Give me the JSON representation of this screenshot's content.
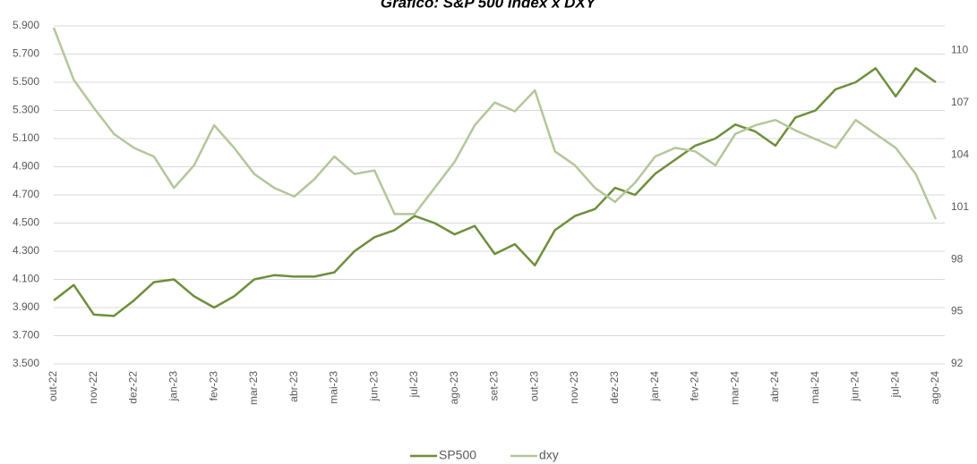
{
  "chart_data": {
    "type": "line",
    "title": "Gráfico: S&P 500 Index x DXY",
    "categories": [
      "out-22",
      null,
      "nov-22",
      null,
      "dez-22",
      null,
      "jan-23",
      null,
      "fev-23",
      null,
      "mar-23",
      null,
      "abr-23",
      null,
      "mai-23",
      null,
      "jun-23",
      null,
      "jul-23",
      null,
      "ago-23",
      null,
      "set-23",
      null,
      "out-23",
      null,
      "nov-23",
      null,
      "dez-23",
      null,
      "jan-24",
      null,
      "fev-24",
      null,
      "mar-24",
      null,
      "abr-24",
      null,
      "mai-24",
      null,
      "jun-24",
      null,
      "jul-24",
      null,
      "ago-24"
    ],
    "series": [
      {
        "name": "SP500",
        "color": "#6e8f3c",
        "values": [
          3950,
          4060,
          3850,
          3840,
          3950,
          4080,
          4100,
          3980,
          3900,
          3980,
          4100,
          4130,
          4120,
          4120,
          4150,
          4300,
          4400,
          4450,
          4550,
          4500,
          4420,
          4480,
          4280,
          4350,
          4200,
          4450,
          4550,
          4600,
          4750,
          4700,
          4850,
          4950,
          5050,
          5100,
          5200,
          5150,
          5050,
          5250,
          5300,
          5450,
          5500,
          5600,
          5400,
          5600,
          5500
        ]
      },
      {
        "name": "dxy",
        "color": "#b3c79a",
        "axis": "y2",
        "values": [
          111.3,
          108.3,
          106.7,
          105.2,
          104.4,
          103.9,
          102.1,
          103.4,
          105.7,
          104.4,
          102.9,
          102.1,
          101.6,
          102.6,
          103.9,
          102.9,
          103.1,
          100.6,
          100.6,
          102.1,
          103.6,
          105.7,
          107.0,
          106.5,
          107.7,
          104.2,
          103.4,
          102.1,
          101.3,
          102.4,
          103.9,
          104.4,
          104.2,
          103.4,
          105.2,
          105.7,
          106.0,
          105.4,
          104.9,
          104.4,
          106.0,
          105.2,
          104.4,
          102.9,
          100.3
        ]
      }
    ],
    "ylim": [
      3500,
      5900
    ],
    "yticks": [
      {
        "value": 3500,
        "label": "3.500"
      },
      {
        "value": 3700,
        "label": "3.700"
      },
      {
        "value": 3900,
        "label": "3.900"
      },
      {
        "value": 4100,
        "label": "4.100"
      },
      {
        "value": 4300,
        "label": "4.300"
      },
      {
        "value": 4500,
        "label": "4.500"
      },
      {
        "value": 4700,
        "label": "4.700"
      },
      {
        "value": 4900,
        "label": "4.900"
      },
      {
        "value": 5100,
        "label": "5.100"
      },
      {
        "value": 5300,
        "label": "5.300"
      },
      {
        "value": 5500,
        "label": "5.500"
      },
      {
        "value": 5700,
        "label": "5.700"
      },
      {
        "value": 5900,
        "label": "5.900"
      }
    ],
    "y2lim": [
      92,
      111.4
    ],
    "y2ticks": [
      92,
      95,
      98,
      101,
      104,
      107,
      110
    ],
    "grid": true,
    "legend": "bottom"
  }
}
